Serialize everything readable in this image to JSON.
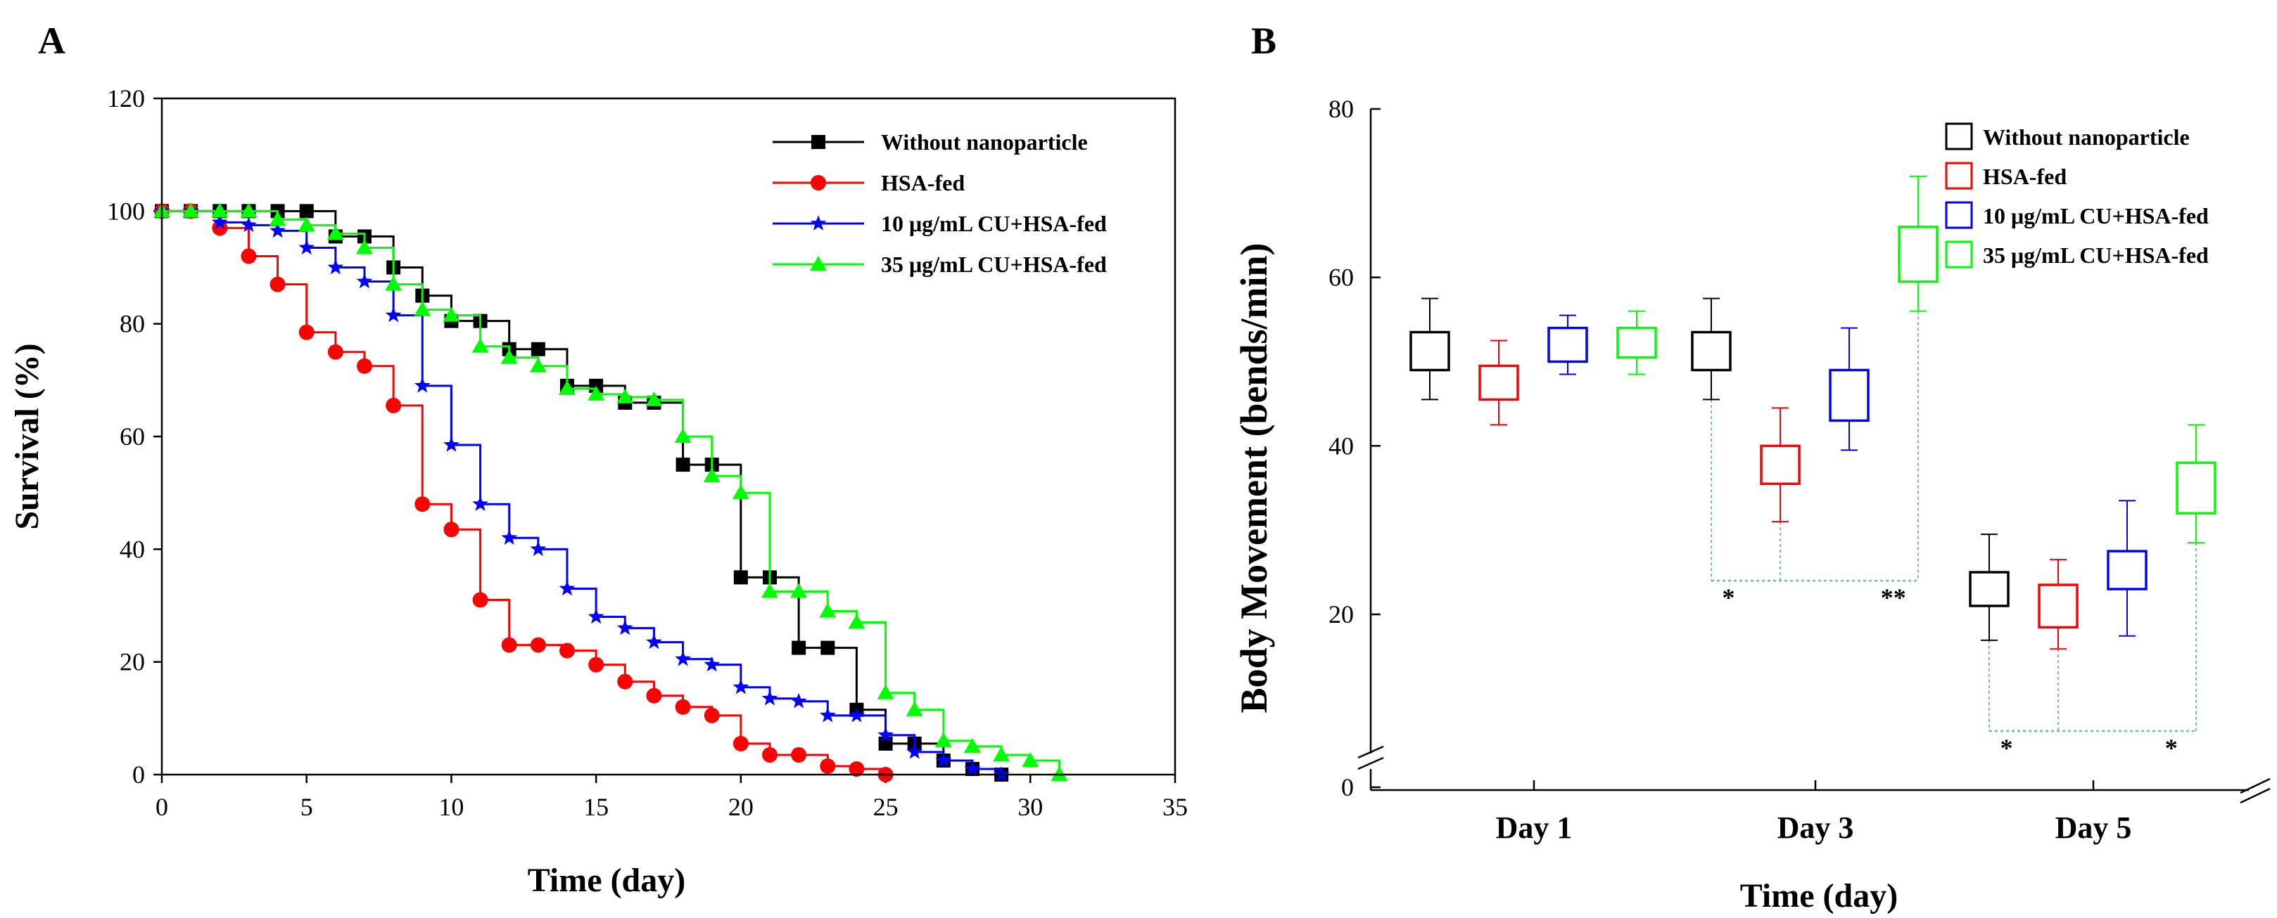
{
  "figure": {
    "panel_a_label": "A",
    "panel_b_label": "B"
  },
  "colors": {
    "without": "#000000",
    "hsa": "#ff0000",
    "cu10": "#0000ff",
    "cu35": "#00ff00",
    "sig_line": "#6fb8c8",
    "axis": "#000000"
  },
  "chart_data": [
    {
      "type": "line",
      "panel": "A",
      "title": "",
      "xlabel": "Time (day)",
      "ylabel": "Survival (%)",
      "xlim": [
        0,
        35
      ],
      "ylim": [
        0,
        120
      ],
      "x_ticks": [
        "0",
        "5",
        "10",
        "15",
        "20",
        "25",
        "30",
        "35"
      ],
      "y_ticks": [
        "0",
        "20",
        "40",
        "60",
        "80",
        "100",
        "120"
      ],
      "legend_position": "top-right",
      "series": [
        {
          "name": "Without nanoparticle",
          "color_key": "without",
          "marker": "square",
          "x": [
            0,
            1,
            2,
            3,
            4,
            5,
            6,
            7,
            8,
            9,
            10,
            11,
            12,
            13,
            14,
            15,
            16,
            17,
            18,
            19,
            20,
            21,
            22,
            23,
            24,
            25,
            26,
            27,
            28,
            29
          ],
          "y": [
            100,
            100,
            100,
            100,
            100,
            100,
            95.5,
            95.5,
            90,
            85,
            80.5,
            80.5,
            75.5,
            75.5,
            69,
            69,
            66,
            66,
            55,
            55,
            35,
            35,
            22.5,
            22.5,
            11.5,
            5.5,
            5.5,
            2.5,
            1,
            0
          ]
        },
        {
          "name": "HSA-fed",
          "color_key": "hsa",
          "marker": "circle",
          "x": [
            0,
            1,
            2,
            3,
            4,
            5,
            6,
            7,
            8,
            9,
            10,
            11,
            12,
            13,
            14,
            15,
            16,
            17,
            18,
            19,
            20,
            21,
            22,
            23,
            24,
            25
          ],
          "y": [
            100,
            100,
            97,
            92,
            87,
            78.5,
            75,
            72.5,
            65.5,
            48,
            43.5,
            31,
            23,
            23,
            22,
            19.5,
            16.5,
            14,
            12,
            10.5,
            5.5,
            3.5,
            3.5,
            1.5,
            1,
            0
          ]
        },
        {
          "name": "10 μg/mL CU+HSA-fed",
          "color_key": "cu10",
          "marker": "star",
          "x": [
            0,
            1,
            2,
            3,
            4,
            5,
            6,
            7,
            8,
            9,
            10,
            11,
            12,
            13,
            14,
            15,
            16,
            17,
            18,
            19,
            20,
            21,
            22,
            23,
            24,
            25,
            26,
            27,
            28,
            29
          ],
          "y": [
            100,
            100,
            98,
            97.5,
            96.5,
            93.5,
            90,
            87.5,
            81.5,
            69,
            58.5,
            48,
            42,
            40,
            33,
            28,
            26,
            23.5,
            20.5,
            19.5,
            15.5,
            13.5,
            13,
            10.5,
            10.5,
            7,
            4,
            2.5,
            1,
            0
          ]
        },
        {
          "name": "35 μg/mL CU+HSA-fed",
          "color_key": "cu35",
          "marker": "triangle",
          "x": [
            0,
            1,
            2,
            3,
            4,
            5,
            6,
            7,
            8,
            9,
            10,
            11,
            12,
            13,
            14,
            15,
            16,
            17,
            18,
            19,
            20,
            21,
            22,
            23,
            24,
            25,
            26,
            27,
            28,
            29,
            30,
            31
          ],
          "y": [
            100,
            100,
            100,
            100,
            98.5,
            97.5,
            96,
            93.5,
            87,
            82.5,
            81.5,
            76,
            74,
            72.5,
            68.5,
            67.5,
            67,
            66.5,
            60,
            53,
            50,
            32.5,
            32.5,
            29,
            27,
            14.5,
            11.5,
            6,
            5,
            3.5,
            2.5,
            0
          ]
        }
      ]
    },
    {
      "type": "box",
      "panel": "B",
      "title": "",
      "xlabel": "Time (day)",
      "ylabel": "Body Movement (bends/min)",
      "categories": [
        "Day 1",
        "Day 3",
        "Day 5"
      ],
      "y_ticks": [
        "0",
        "20",
        "40",
        "60",
        "80"
      ],
      "ylim": [
        0,
        80
      ],
      "axis_break": true,
      "legend_position": "top-right",
      "series": [
        {
          "name": "Without nanoparticle",
          "color_key": "without",
          "boxes": [
            {
              "low": 45.5,
              "q1": 49,
              "q3": 53.5,
              "high": 57.5
            },
            {
              "low": 45.5,
              "q1": 49,
              "q3": 53.5,
              "high": 57.5
            },
            {
              "low": 17,
              "q1": 21,
              "q3": 25,
              "high": 29.5
            }
          ]
        },
        {
          "name": "HSA-fed",
          "color_key": "hsa",
          "boxes": [
            {
              "low": 42.5,
              "q1": 45.5,
              "q3": 49.5,
              "high": 52.5
            },
            {
              "low": 31,
              "q1": 35.5,
              "q3": 40,
              "high": 44.5
            },
            {
              "low": 16,
              "q1": 18.5,
              "q3": 23.5,
              "high": 26.5
            }
          ]
        },
        {
          "name": "10 μg/mL CU+HSA-fed",
          "color_key": "cu10",
          "boxes": [
            {
              "low": 48.5,
              "q1": 50,
              "q3": 54,
              "high": 55.5
            },
            {
              "low": 39.5,
              "q1": 43,
              "q3": 49,
              "high": 54
            },
            {
              "low": 17.5,
              "q1": 23,
              "q3": 27.5,
              "high": 33.5
            }
          ]
        },
        {
          "name": "35 μg/mL CU+HSA-fed",
          "color_key": "cu35",
          "boxes": [
            {
              "low": 48.5,
              "q1": 50.5,
              "q3": 54,
              "high": 56
            },
            {
              "low": 56,
              "q1": 59.5,
              "q3": 66,
              "high": 72
            },
            {
              "low": 28.5,
              "q1": 32,
              "q3": 38,
              "high": 42.5
            }
          ]
        }
      ],
      "significance": [
        {
          "category": "Day 3",
          "from_series": 0,
          "to_series": 1,
          "label": "*",
          "y": 24
        },
        {
          "category": "Day 3",
          "from_series": 0,
          "to_series": 3,
          "label": "**",
          "y": 24
        },
        {
          "category": "Day 5",
          "from_series": 0,
          "to_series": 1,
          "label": "*",
          "y": 6.5
        },
        {
          "category": "Day 5",
          "from_series": 0,
          "to_series": 3,
          "label": "*",
          "y": 6.5
        }
      ]
    }
  ]
}
